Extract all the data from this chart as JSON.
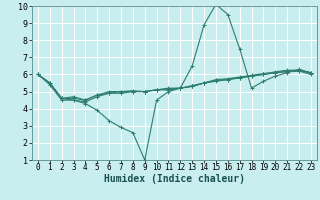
{
  "xlabel": "Humidex (Indice chaleur)",
  "ylabel": "",
  "background_color": "#c8eef0",
  "grid_color": "#ffffff",
  "line_color": "#2e7d6e",
  "xlim": [
    -0.5,
    23.5
  ],
  "ylim": [
    1,
    10
  ],
  "xticks": [
    0,
    1,
    2,
    3,
    4,
    5,
    6,
    7,
    8,
    9,
    10,
    11,
    12,
    13,
    14,
    15,
    16,
    17,
    18,
    19,
    20,
    21,
    22,
    23
  ],
  "yticks": [
    1,
    2,
    3,
    4,
    5,
    6,
    7,
    8,
    9,
    10
  ],
  "series": [
    [
      6.0,
      5.5,
      4.6,
      4.6,
      4.5,
      4.8,
      4.9,
      5.0,
      5.0,
      5.0,
      5.1,
      5.1,
      5.2,
      5.3,
      5.5,
      5.6,
      5.7,
      5.8,
      5.9,
      6.0,
      6.1,
      6.2,
      6.2,
      6.1
    ],
    [
      6.0,
      5.5,
      4.6,
      4.5,
      4.4,
      4.7,
      4.9,
      4.9,
      5.0,
      5.0,
      5.1,
      5.2,
      5.2,
      5.3,
      5.5,
      5.65,
      5.7,
      5.8,
      5.9,
      6.0,
      6.1,
      6.15,
      6.2,
      6.0
    ],
    [
      6.0,
      5.4,
      4.5,
      4.5,
      4.3,
      3.9,
      3.3,
      2.9,
      2.6,
      1.0,
      4.5,
      5.0,
      5.2,
      6.5,
      8.9,
      10.1,
      9.5,
      7.5,
      5.2,
      5.6,
      5.9,
      6.1,
      6.3,
      6.1
    ],
    [
      6.0,
      5.5,
      4.6,
      4.7,
      4.5,
      4.8,
      5.0,
      5.0,
      5.05,
      5.0,
      5.1,
      5.15,
      5.2,
      5.35,
      5.5,
      5.7,
      5.75,
      5.85,
      5.95,
      6.05,
      6.15,
      6.25,
      6.25,
      6.1
    ]
  ],
  "tick_fontsize": 5.5,
  "xlabel_fontsize": 7.0,
  "xlabel_color": "#1a5050",
  "spine_color": "#5a8a8a"
}
